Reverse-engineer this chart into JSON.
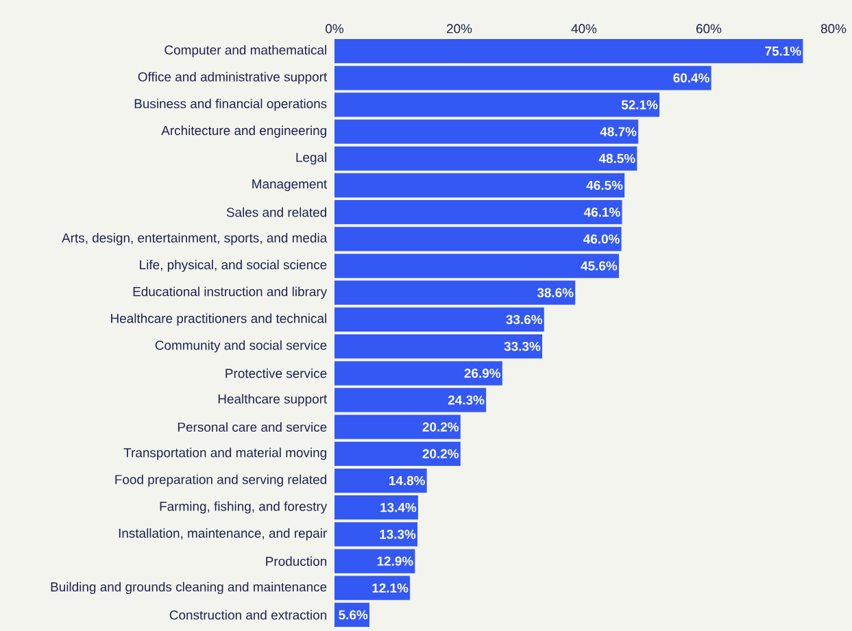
{
  "chart_data": {
    "type": "bar",
    "orientation": "horizontal",
    "color": "#3358f4",
    "categories": [
      "Computer and mathematical",
      "Office and administrative support",
      "Business and financial operations",
      "Architecture and engineering",
      "Legal",
      "Management",
      "Sales and related",
      "Arts, design, entertainment, sports, and media",
      "Life, physical, and social science",
      "Educational instruction and library",
      "Healthcare practitioners and technical",
      "Community and social service",
      "Protective service",
      "Healthcare support",
      "Personal care and service",
      "Transportation and material moving",
      "Food preparation and serving related",
      "Farming, fishing, and forestry",
      "Installation, maintenance, and repair",
      "Production",
      "Building and grounds cleaning and maintenance",
      "Construction and extraction"
    ],
    "values": [
      75.1,
      60.4,
      52.1,
      48.7,
      48.5,
      46.5,
      46.1,
      46.0,
      45.6,
      38.6,
      33.6,
      33.3,
      26.9,
      24.3,
      20.2,
      20.2,
      14.8,
      13.4,
      13.3,
      12.9,
      12.1,
      5.6
    ],
    "value_labels": [
      "75.1%",
      "60.4%",
      "52.1%",
      "48.7%",
      "48.5%",
      "46.5%",
      "46.1%",
      "46.0%",
      "45.6%",
      "38.6%",
      "33.6%",
      "33.3%",
      "26.9%",
      "24.3%",
      "20.2%",
      "20.2%",
      "14.8%",
      "13.4%",
      "13.3%",
      "12.9%",
      "12.1%",
      "5.6%"
    ],
    "xlim": [
      0,
      80
    ],
    "xticks": [
      {
        "value": 0,
        "label": "0%"
      },
      {
        "value": 20,
        "label": "20%"
      },
      {
        "value": 40,
        "label": "40%"
      },
      {
        "value": 60,
        "label": "60%"
      },
      {
        "value": 80,
        "label": "80%"
      }
    ],
    "grid": false
  }
}
